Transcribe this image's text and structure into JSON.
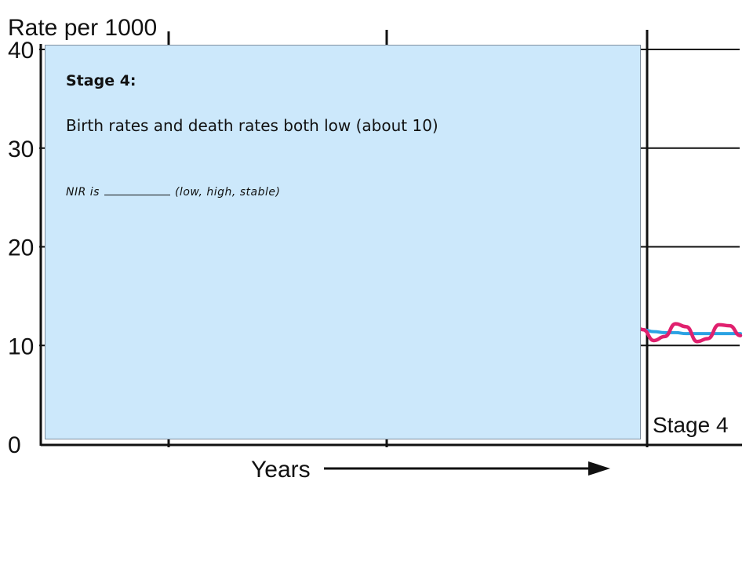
{
  "chart_data": {
    "type": "line",
    "ylabel": "Rate per 1000",
    "xlabel": "Years",
    "yticks": [
      40,
      30,
      20,
      10,
      0
    ],
    "ylim": [
      0,
      40
    ],
    "grid": true,
    "stage_label": "Stage 4",
    "series": [
      {
        "color": "#e0206e",
        "x": [
          0,
          1,
          2,
          3,
          4,
          5,
          6,
          7,
          8,
          9,
          10
        ],
        "values": [
          12.3,
          11.6,
          10.5,
          10.9,
          12.2,
          11.9,
          10.4,
          10.7,
          12.1,
          12.0,
          11.0
        ]
      },
      {
        "color": "#2aa2e3",
        "x": [
          0,
          1,
          2,
          3,
          4,
          5,
          6,
          7,
          8,
          9,
          10
        ],
        "values": [
          11.7,
          11.6,
          11.4,
          11.3,
          11.3,
          11.2,
          11.2,
          11.2,
          11.2,
          11.2,
          11.2
        ]
      }
    ]
  },
  "overlay": {
    "heading": "Stage 4:",
    "body": "Birth rates and death rates both low (about 10)",
    "note_prefix": "NIR is",
    "note_suffix": "(low, high, stable)"
  },
  "colors": {
    "overlay_bg": "#cce8fb",
    "axis": "#111111"
  }
}
